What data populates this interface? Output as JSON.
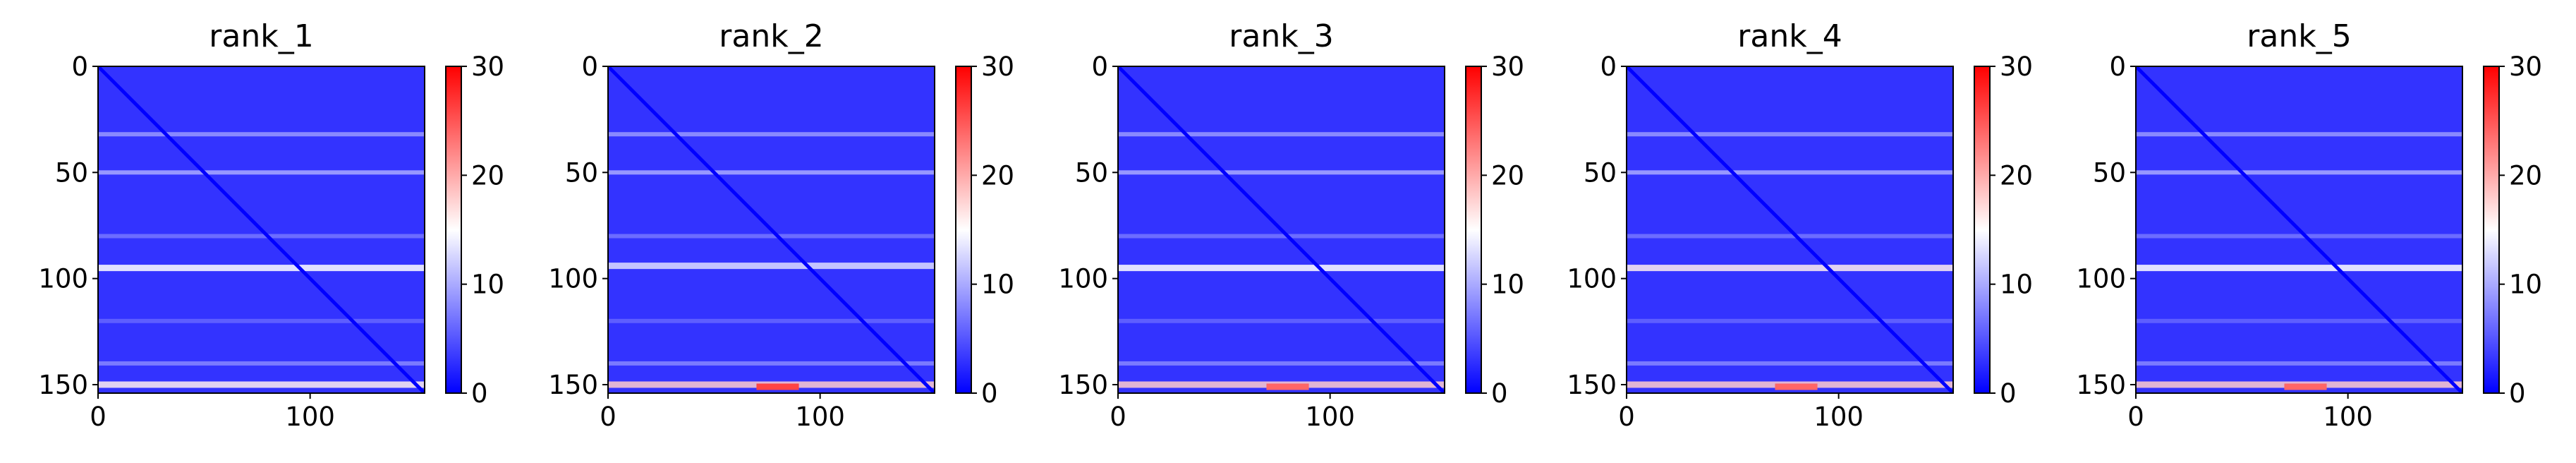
{
  "chart_data": [
    {
      "type": "heatmap",
      "title": "rank_1",
      "xticks": [
        0,
        100
      ],
      "yticks": [
        0,
        50,
        100,
        150
      ],
      "xlim": [
        0,
        154
      ],
      "ylim": [
        154,
        0
      ],
      "colorbar": {
        "ticks": [
          0,
          10,
          20,
          30
        ],
        "vmin": 0,
        "vmax": 30,
        "cmap": "bwr"
      },
      "n": 154,
      "background_value": 3,
      "diagonal_value": 0,
      "row_bands": [
        {
          "row": 32,
          "value": 9,
          "width": 2
        },
        {
          "row": 50,
          "value": 10,
          "width": 2
        },
        {
          "row": 80,
          "value": 7,
          "width": 2
        },
        {
          "row": 95,
          "value": 15,
          "width": 3
        },
        {
          "row": 120,
          "value": 6,
          "width": 2
        },
        {
          "row": 140,
          "value": 8,
          "width": 2
        },
        {
          "row": 150,
          "value": 16,
          "width": 3
        }
      ],
      "hot_spots": []
    },
    {
      "type": "heatmap",
      "title": "rank_2",
      "xticks": [
        0,
        100
      ],
      "yticks": [
        0,
        50,
        100,
        150
      ],
      "xlim": [
        0,
        154
      ],
      "ylim": [
        154,
        0
      ],
      "colorbar": {
        "ticks": [
          0,
          10,
          20,
          30
        ],
        "vmin": 0,
        "vmax": 30,
        "cmap": "bwr"
      },
      "n": 154,
      "background_value": 3,
      "diagonal_value": 0,
      "row_bands": [
        {
          "row": 32,
          "value": 9,
          "width": 2
        },
        {
          "row": 50,
          "value": 10,
          "width": 2
        },
        {
          "row": 80,
          "value": 7,
          "width": 2
        },
        {
          "row": 94,
          "value": 13,
          "width": 3
        },
        {
          "row": 120,
          "value": 6,
          "width": 2
        },
        {
          "row": 140,
          "value": 8,
          "width": 2
        },
        {
          "row": 150,
          "value": 18,
          "width": 3
        }
      ],
      "hot_spots": [
        {
          "x0": 70,
          "x1": 90,
          "row": 151,
          "value": 26
        }
      ]
    },
    {
      "type": "heatmap",
      "title": "rank_3",
      "xticks": [
        0,
        100
      ],
      "yticks": [
        0,
        50,
        100,
        150
      ],
      "xlim": [
        0,
        154
      ],
      "ylim": [
        154,
        0
      ],
      "colorbar": {
        "ticks": [
          0,
          10,
          20,
          30
        ],
        "vmin": 0,
        "vmax": 30,
        "cmap": "bwr"
      },
      "n": 154,
      "background_value": 3,
      "diagonal_value": 0,
      "row_bands": [
        {
          "row": 32,
          "value": 9,
          "width": 2
        },
        {
          "row": 50,
          "value": 10,
          "width": 2
        },
        {
          "row": 80,
          "value": 7,
          "width": 2
        },
        {
          "row": 95,
          "value": 15,
          "width": 3
        },
        {
          "row": 120,
          "value": 6,
          "width": 2
        },
        {
          "row": 140,
          "value": 8,
          "width": 2
        },
        {
          "row": 150,
          "value": 18,
          "width": 3
        }
      ],
      "hot_spots": [
        {
          "x0": 70,
          "x1": 90,
          "row": 151,
          "value": 24
        }
      ]
    },
    {
      "type": "heatmap",
      "title": "rank_4",
      "xticks": [
        0,
        100
      ],
      "yticks": [
        0,
        50,
        100,
        150
      ],
      "xlim": [
        0,
        154
      ],
      "ylim": [
        154,
        0
      ],
      "colorbar": {
        "ticks": [
          0,
          10,
          20,
          30
        ],
        "vmin": 0,
        "vmax": 30,
        "cmap": "bwr"
      },
      "n": 154,
      "background_value": 3,
      "diagonal_value": 0,
      "row_bands": [
        {
          "row": 32,
          "value": 9,
          "width": 2
        },
        {
          "row": 50,
          "value": 10,
          "width": 2
        },
        {
          "row": 80,
          "value": 7,
          "width": 2
        },
        {
          "row": 95,
          "value": 16,
          "width": 3
        },
        {
          "row": 120,
          "value": 6,
          "width": 2
        },
        {
          "row": 140,
          "value": 8,
          "width": 2
        },
        {
          "row": 150,
          "value": 18,
          "width": 3
        }
      ],
      "hot_spots": [
        {
          "x0": 70,
          "x1": 90,
          "row": 151,
          "value": 24
        }
      ]
    },
    {
      "type": "heatmap",
      "title": "rank_5",
      "xticks": [
        0,
        100
      ],
      "yticks": [
        0,
        50,
        100,
        150
      ],
      "xlim": [
        0,
        154
      ],
      "ylim": [
        154,
        0
      ],
      "colorbar": {
        "ticks": [
          0,
          10,
          20,
          30
        ],
        "vmin": 0,
        "vmax": 30,
        "cmap": "bwr"
      },
      "n": 154,
      "background_value": 3,
      "diagonal_value": 0,
      "row_bands": [
        {
          "row": 32,
          "value": 9,
          "width": 2
        },
        {
          "row": 50,
          "value": 10,
          "width": 2
        },
        {
          "row": 80,
          "value": 7,
          "width": 2
        },
        {
          "row": 95,
          "value": 15,
          "width": 3
        },
        {
          "row": 120,
          "value": 6,
          "width": 2
        },
        {
          "row": 140,
          "value": 8,
          "width": 2
        },
        {
          "row": 150,
          "value": 18,
          "width": 3
        }
      ],
      "hot_spots": [
        {
          "x0": 70,
          "x1": 90,
          "row": 151,
          "value": 24
        }
      ]
    }
  ]
}
